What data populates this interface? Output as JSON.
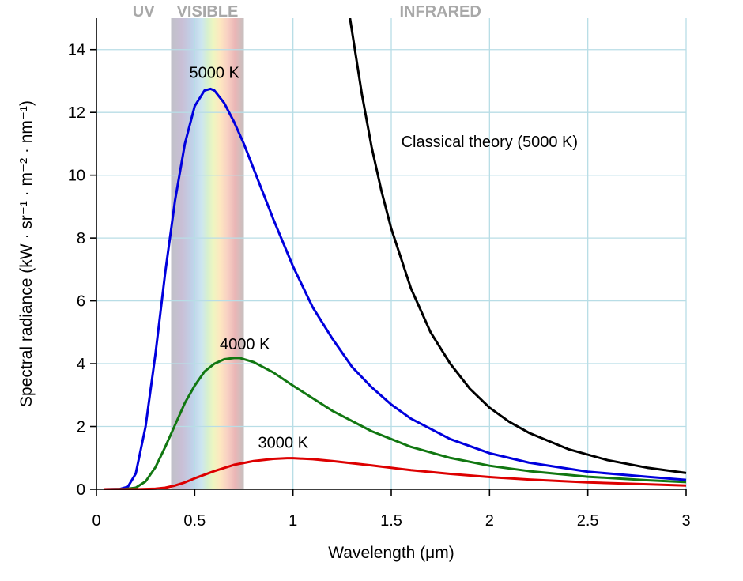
{
  "chart_data": {
    "type": "line",
    "title": "",
    "xlabel": "Wavelength (μm)",
    "ylabel": "Spectral radiance (kW · sr⁻¹ · m⁻² · nm⁻¹)",
    "xlim": [
      0,
      3
    ],
    "ylim": [
      0,
      15
    ],
    "x_ticks": [
      {
        "value": 0,
        "label": "0"
      },
      {
        "value": 0.5,
        "label": "0.5"
      },
      {
        "value": 1,
        "label": "1"
      },
      {
        "value": 1.5,
        "label": "1.5"
      },
      {
        "value": 2,
        "label": "2"
      },
      {
        "value": 2.5,
        "label": "2.5"
      },
      {
        "value": 3,
        "label": "3"
      }
    ],
    "y_ticks": [
      {
        "value": 0,
        "label": "0"
      },
      {
        "value": 2,
        "label": "2"
      },
      {
        "value": 4,
        "label": "4"
      },
      {
        "value": 6,
        "label": "6"
      },
      {
        "value": 8,
        "label": "8"
      },
      {
        "value": 10,
        "label": "10"
      },
      {
        "value": 12,
        "label": "12"
      },
      {
        "value": 14,
        "label": "14"
      }
    ],
    "grid": true,
    "visible_band": [
      0.38,
      0.75
    ],
    "regions": [
      {
        "label": "UV",
        "x": 0.24
      },
      {
        "label": "VISIBLE",
        "x": 0.565
      },
      {
        "label": "INFRARED",
        "x": 1.75
      }
    ],
    "series": [
      {
        "name": "5000 K",
        "color": "#0000dd",
        "label_at": {
          "x": 0.6,
          "y": 13.1
        },
        "x": [
          0.04,
          0.12,
          0.16,
          0.2,
          0.25,
          0.3,
          0.35,
          0.4,
          0.45,
          0.5,
          0.55,
          0.58,
          0.6,
          0.65,
          0.7,
          0.75,
          0.8,
          0.9,
          1.0,
          1.1,
          1.2,
          1.3,
          1.4,
          1.5,
          1.6,
          1.8,
          2.0,
          2.2,
          2.5,
          2.8,
          3.0
        ],
        "values": [
          0,
          0.01,
          0.08,
          0.5,
          2.0,
          4.3,
          6.9,
          9.2,
          11.0,
          12.2,
          12.7,
          12.75,
          12.7,
          12.3,
          11.7,
          11.0,
          10.2,
          8.6,
          7.1,
          5.8,
          4.8,
          3.9,
          3.25,
          2.7,
          2.25,
          1.6,
          1.15,
          0.85,
          0.56,
          0.4,
          0.3
        ]
      },
      {
        "name": "4000 K",
        "color": "#117711",
        "label_at": {
          "x": 0.755,
          "y": 4.45
        },
        "x": [
          0.04,
          0.15,
          0.2,
          0.25,
          0.3,
          0.35,
          0.4,
          0.45,
          0.5,
          0.55,
          0.6,
          0.65,
          0.7,
          0.73,
          0.8,
          0.9,
          1.0,
          1.1,
          1.2,
          1.4,
          1.6,
          1.8,
          2.0,
          2.2,
          2.5,
          2.8,
          3.0
        ],
        "values": [
          0,
          0.01,
          0.05,
          0.25,
          0.7,
          1.35,
          2.05,
          2.75,
          3.3,
          3.75,
          4.0,
          4.14,
          4.18,
          4.18,
          4.05,
          3.72,
          3.3,
          2.9,
          2.5,
          1.85,
          1.35,
          1.0,
          0.75,
          0.58,
          0.4,
          0.29,
          0.23
        ]
      },
      {
        "name": "3000 K",
        "color": "#dd0000",
        "label_at": {
          "x": 0.95,
          "y": 1.32
        },
        "x": [
          0.04,
          0.2,
          0.3,
          0.35,
          0.4,
          0.45,
          0.5,
          0.6,
          0.7,
          0.8,
          0.9,
          0.97,
          1.0,
          1.1,
          1.2,
          1.4,
          1.6,
          1.8,
          2.0,
          2.2,
          2.5,
          2.8,
          3.0
        ],
        "values": [
          0,
          0,
          0.02,
          0.05,
          0.12,
          0.22,
          0.35,
          0.58,
          0.78,
          0.9,
          0.97,
          0.99,
          0.99,
          0.96,
          0.9,
          0.76,
          0.61,
          0.49,
          0.39,
          0.31,
          0.22,
          0.16,
          0.12
        ]
      },
      {
        "name": "Classical theory (5000 K)",
        "color": "#000000",
        "label_at": {
          "x": 2.0,
          "y": 10.9
        },
        "x": [
          1.29,
          1.35,
          1.4,
          1.45,
          1.5,
          1.6,
          1.7,
          1.8,
          1.9,
          2.0,
          2.1,
          2.2,
          2.4,
          2.6,
          2.8,
          3.0
        ],
        "values": [
          15.0,
          12.6,
          10.9,
          9.5,
          8.3,
          6.4,
          5.0,
          4.0,
          3.2,
          2.6,
          2.15,
          1.8,
          1.28,
          0.93,
          0.69,
          0.52
        ]
      }
    ]
  }
}
